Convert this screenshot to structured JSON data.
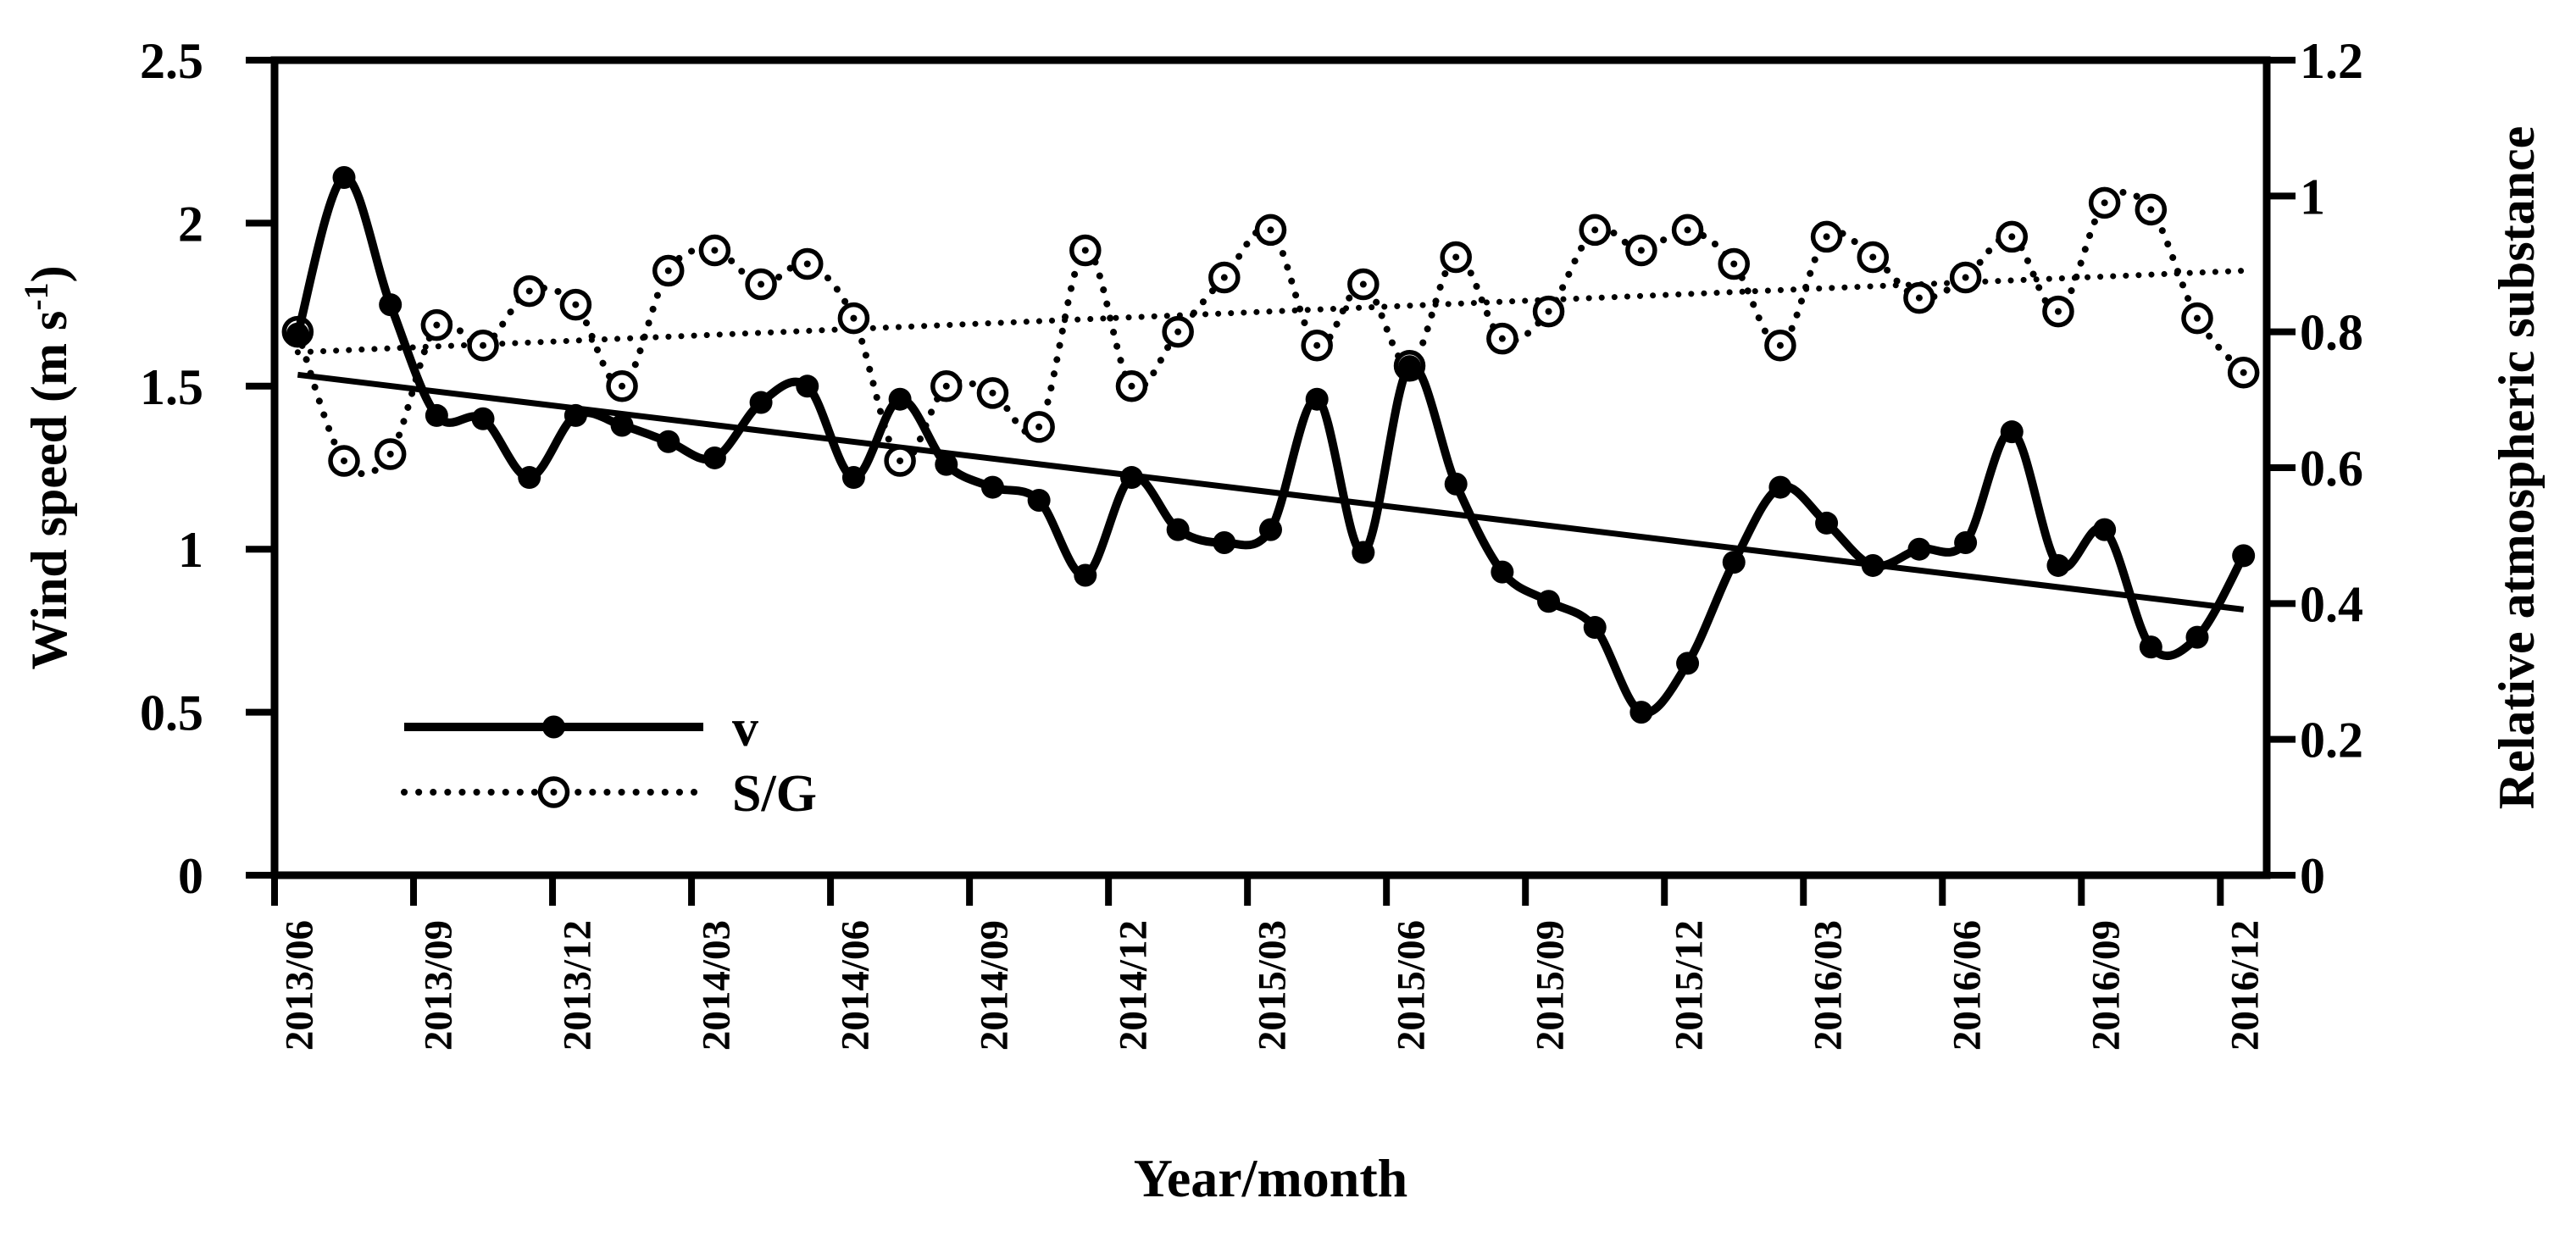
{
  "figure": {
    "background": "#ffffff",
    "ink_color": "#000000"
  },
  "chart_data": {
    "type": "line",
    "categories": [
      "2013/06",
      "2013/07",
      "2013/08",
      "2013/09",
      "2013/10",
      "2013/11",
      "2013/12",
      "2014/01",
      "2014/02",
      "2014/03",
      "2014/04",
      "2014/05",
      "2014/06",
      "2014/07",
      "2014/08",
      "2014/09",
      "2014/10",
      "2014/11",
      "2014/12",
      "2015/01",
      "2015/02",
      "2015/03",
      "2015/04",
      "2015/05",
      "2015/06",
      "2015/07",
      "2015/08",
      "2015/09",
      "2015/10",
      "2015/11",
      "2015/12",
      "2016/01",
      "2016/02",
      "2016/03",
      "2016/04",
      "2016/05",
      "2016/06",
      "2016/07",
      "2016/08",
      "2016/09",
      "2016/10",
      "2016/11",
      "2016/12"
    ],
    "series": [
      {
        "name": "v",
        "axis": "left",
        "marker": "filled-dot",
        "line_style": "solid",
        "values": [
          1.66,
          2.14,
          1.75,
          1.41,
          1.4,
          1.22,
          1.41,
          1.38,
          1.33,
          1.28,
          1.45,
          1.5,
          1.22,
          1.46,
          1.26,
          1.19,
          1.15,
          0.92,
          1.22,
          1.06,
          1.02,
          1.06,
          1.46,
          0.99,
          1.56,
          1.2,
          0.93,
          0.84,
          0.76,
          0.5,
          0.65,
          0.96,
          1.19,
          1.08,
          0.95,
          1.0,
          1.02,
          1.36,
          0.95,
          1.06,
          0.7,
          0.73,
          0.98
        ]
      },
      {
        "name": "S/G",
        "axis": "right",
        "marker": "open-circle-dot",
        "line_style": "dotted",
        "values": [
          0.8,
          0.61,
          0.62,
          0.81,
          0.78,
          0.86,
          0.84,
          0.72,
          0.89,
          0.92,
          0.87,
          0.9,
          0.82,
          0.61,
          0.72,
          0.71,
          0.66,
          0.92,
          0.72,
          0.8,
          0.88,
          0.95,
          0.78,
          0.87,
          0.75,
          0.91,
          0.79,
          0.83,
          0.95,
          0.92,
          0.95,
          0.9,
          0.78,
          0.94,
          0.91,
          0.85,
          0.88,
          0.94,
          0.83,
          0.99,
          0.98,
          0.82,
          0.74
        ]
      }
    ],
    "trendlines": [
      {
        "series": "v",
        "style": "solid",
        "start_value": 1.535,
        "end_value": 0.815
      },
      {
        "series": "S/G",
        "style": "dotted",
        "start_value": 0.77,
        "end_value": 0.89
      }
    ],
    "left_axis": {
      "title_parts": {
        "pre": "Wind speed (m s",
        "sup": "-1",
        "post": ")"
      },
      "max": 2.5,
      "ticks": [
        0,
        0.5,
        1,
        1.5,
        2,
        2.5
      ],
      "tick_labels": [
        "0",
        "0.5",
        "1",
        "1.5",
        "2",
        "2.5"
      ]
    },
    "right_axis": {
      "title": "Relative atmospheric substance",
      "max": 1.2,
      "ticks": [
        0,
        0.2,
        0.4,
        0.6,
        0.8,
        1,
        1.2
      ],
      "tick_labels": [
        "0",
        "0.2",
        "0.4",
        "0.6",
        "0.8",
        "1",
        "1.2"
      ]
    },
    "x_axis": {
      "title": "Year/month",
      "label_interval": 3
    },
    "legend": {
      "items": [
        {
          "label": "v",
          "series": "v"
        },
        {
          "label": "S/G",
          "series": "S/G"
        }
      ]
    },
    "layout_hints": {
      "grid": "off",
      "legend_position": "inside-lower-left",
      "x_labels_rotated": true
    }
  }
}
